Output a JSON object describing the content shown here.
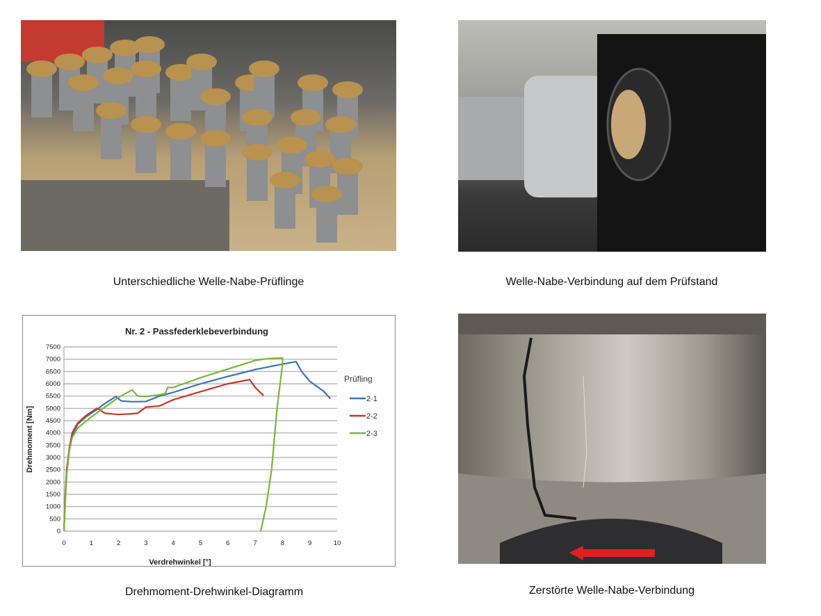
{
  "captions": {
    "top_left": "Unterschiedliche  Welle-Nabe-Prüflinge",
    "top_right": "Welle-Nabe-Verbindung auf dem Prüfstand",
    "bottom_left": "Drehmoment-Drehwinkel-Diagramm",
    "bottom_right": "Zerstörte Welle-Nabe-Verbindung"
  },
  "chart_data": {
    "type": "line",
    "title": "Nr. 2 - Passfederklebeverbindung",
    "xlabel": "Verdrehwinkel [°]",
    "ylabel": "Drehmoment [Nm]",
    "xlim": [
      0,
      10
    ],
    "ylim": [
      0,
      7500
    ],
    "xticks": [
      "0",
      "1",
      "2",
      "3",
      "4",
      "5",
      "6",
      "7",
      "8",
      "9",
      "10"
    ],
    "yticks": [
      "0",
      "500",
      "1000",
      "1500",
      "2000",
      "2500",
      "3000",
      "3500",
      "4000",
      "4500",
      "5000",
      "5500",
      "6000",
      "6500",
      "7000",
      "7500"
    ],
    "grid": "horizontal",
    "legend_title": "Prüfling",
    "legend_position": "right",
    "series": [
      {
        "name": "2-1",
        "color": "#3a70c0",
        "points": [
          [
            0,
            0
          ],
          [
            0.05,
            1500
          ],
          [
            0.1,
            2500
          ],
          [
            0.2,
            3300
          ],
          [
            0.3,
            3900
          ],
          [
            0.5,
            4350
          ],
          [
            0.8,
            4650
          ],
          [
            1.2,
            4950
          ],
          [
            1.5,
            5200
          ],
          [
            1.9,
            5480
          ],
          [
            2.1,
            5300
          ],
          [
            2.5,
            5270
          ],
          [
            3,
            5280
          ],
          [
            3.5,
            5500
          ],
          [
            4,
            5650
          ],
          [
            5,
            6000
          ],
          [
            6,
            6300
          ],
          [
            7,
            6580
          ],
          [
            8,
            6800
          ],
          [
            8.5,
            6900
          ],
          [
            8.7,
            6500
          ],
          [
            9,
            6100
          ],
          [
            9.5,
            5700
          ],
          [
            9.75,
            5400
          ]
        ]
      },
      {
        "name": "2-2",
        "color": "#c0392b",
        "points": [
          [
            0,
            0
          ],
          [
            0.05,
            1500
          ],
          [
            0.1,
            2500
          ],
          [
            0.2,
            3400
          ],
          [
            0.3,
            4000
          ],
          [
            0.5,
            4400
          ],
          [
            0.8,
            4700
          ],
          [
            1.2,
            5000
          ],
          [
            1.3,
            4950
          ],
          [
            1.5,
            4800
          ],
          [
            2,
            4750
          ],
          [
            2.5,
            4780
          ],
          [
            2.7,
            4800
          ],
          [
            3,
            5050
          ],
          [
            3.5,
            5100
          ],
          [
            4,
            5350
          ],
          [
            5,
            5680
          ],
          [
            6,
            6000
          ],
          [
            6.8,
            6170
          ],
          [
            7,
            5850
          ],
          [
            7.3,
            5520
          ]
        ]
      },
      {
        "name": "2-3",
        "color": "#7ab538",
        "points": [
          [
            0,
            0
          ],
          [
            0.05,
            1200
          ],
          [
            0.1,
            2300
          ],
          [
            0.2,
            3300
          ],
          [
            0.3,
            3800
          ],
          [
            0.5,
            4200
          ],
          [
            1,
            4650
          ],
          [
            1.5,
            5050
          ],
          [
            2,
            5450
          ],
          [
            2.5,
            5750
          ],
          [
            2.7,
            5500
          ],
          [
            3,
            5480
          ],
          [
            3.5,
            5550
          ],
          [
            3.7,
            5600
          ],
          [
            3.8,
            5850
          ],
          [
            4,
            5850
          ],
          [
            5,
            6250
          ],
          [
            6,
            6600
          ],
          [
            7,
            6950
          ],
          [
            7.5,
            7030
          ],
          [
            8,
            7050
          ],
          [
            8,
            6800
          ],
          [
            7.8,
            5000
          ],
          [
            7.6,
            2500
          ],
          [
            7.4,
            1000
          ],
          [
            7.2,
            0
          ]
        ]
      }
    ]
  }
}
